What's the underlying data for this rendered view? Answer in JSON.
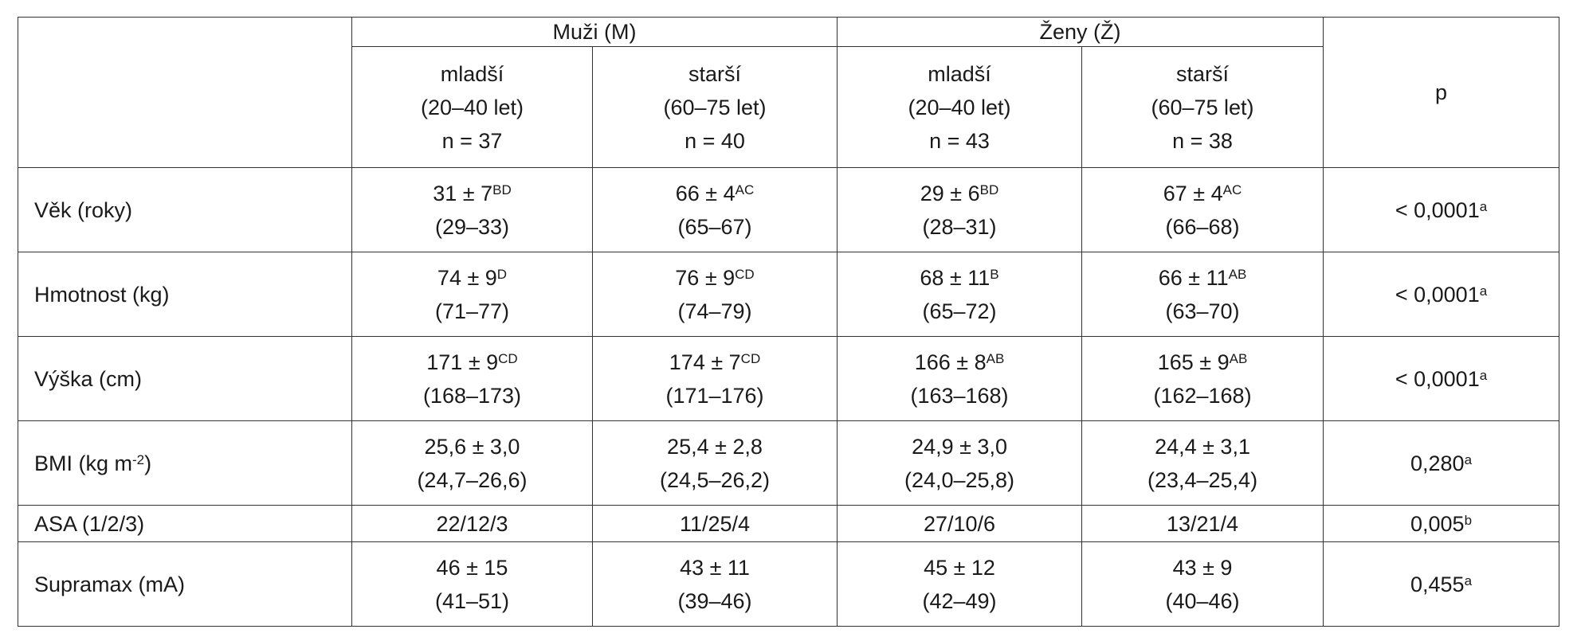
{
  "table": {
    "groups": [
      {
        "label": "Muži (M)"
      },
      {
        "label": "Ženy (Ž)"
      }
    ],
    "subgroups": [
      {
        "age_label": "mladší",
        "age_range": "(20–40 let)",
        "n": "n = 37"
      },
      {
        "age_label": "starší",
        "age_range": "(60–75 let)",
        "n": "n = 40"
      },
      {
        "age_label": "mladší",
        "age_range": "(20–40 let)",
        "n": "n = 43"
      },
      {
        "age_label": "starší",
        "age_range": "(60–75 let)",
        "n": "n = 38"
      }
    ],
    "p_header": "p",
    "rows": [
      {
        "label": "Věk (roky)",
        "label_sup": "",
        "label_suffix": "",
        "cells": [
          {
            "mean": "31 ± 7",
            "sup": "BD",
            "range": "(29–33)"
          },
          {
            "mean": "66 ± 4",
            "sup": "AC",
            "range": "(65–67)"
          },
          {
            "mean": "29 ± 6",
            "sup": "BD",
            "range": "(28–31)"
          },
          {
            "mean": "67 ± 4",
            "sup": "AC",
            "range": "(66–68)"
          }
        ],
        "p": "< 0,0001",
        "p_sup": "a"
      },
      {
        "label": "Hmotnost (kg)",
        "label_sup": "",
        "label_suffix": "",
        "cells": [
          {
            "mean": "74 ± 9",
            "sup": "D",
            "range": "(71–77)"
          },
          {
            "mean": "76 ± 9",
            "sup": "CD",
            "range": "(74–79)"
          },
          {
            "mean": "68 ± 11",
            "sup": "B",
            "range": "(65–72)"
          },
          {
            "mean": "66 ± 11",
            "sup": "AB",
            "range": "(63–70)"
          }
        ],
        "p": "< 0,0001",
        "p_sup": "a"
      },
      {
        "label": "Výška (cm)",
        "label_sup": "",
        "label_suffix": "",
        "cells": [
          {
            "mean": "171 ± 9",
            "sup": "CD",
            "range": "(168–173)"
          },
          {
            "mean": "174 ± 7",
            "sup": "CD",
            "range": "(171–176)"
          },
          {
            "mean": "166 ± 8",
            "sup": "AB",
            "range": "(163–168)"
          },
          {
            "mean": "165 ± 9",
            "sup": "AB",
            "range": "(162–168)"
          }
        ],
        "p": "< 0,0001",
        "p_sup": "a"
      },
      {
        "label": "BMI (kg m",
        "label_sup": "-2",
        "label_suffix": ")",
        "cells": [
          {
            "mean": "25,6 ± 3,0",
            "sup": "",
            "range": "(24,7–26,6)"
          },
          {
            "mean": "25,4 ± 2,8",
            "sup": "",
            "range": "(24,5–26,2)"
          },
          {
            "mean": "24,9 ± 3,0",
            "sup": "",
            "range": "(24,0–25,8)"
          },
          {
            "mean": "24,4 ± 3,1",
            "sup": "",
            "range": "(23,4–25,4)"
          }
        ],
        "p": "0,280",
        "p_sup": "a"
      },
      {
        "label": "ASA (1/2/3)",
        "label_sup": "",
        "label_suffix": "",
        "cells": [
          {
            "mean": "22/12/3",
            "sup": "",
            "range": ""
          },
          {
            "mean": "11/25/4",
            "sup": "",
            "range": ""
          },
          {
            "mean": "27/10/6",
            "sup": "",
            "range": ""
          },
          {
            "mean": "13/21/4",
            "sup": "",
            "range": ""
          }
        ],
        "p": "0,005",
        "p_sup": "b"
      },
      {
        "label": "Supramax (mA)",
        "label_sup": "",
        "label_suffix": "",
        "cells": [
          {
            "mean": "46 ± 15",
            "sup": "",
            "range": "(41–51)"
          },
          {
            "mean": "43 ± 11",
            "sup": "",
            "range": "(39–46)"
          },
          {
            "mean": "45 ± 12",
            "sup": "",
            "range": "(42–49)"
          },
          {
            "mean": "43 ± 9",
            "sup": "",
            "range": "(40–46)"
          }
        ],
        "p": "0,455",
        "p_sup": "a"
      }
    ]
  }
}
